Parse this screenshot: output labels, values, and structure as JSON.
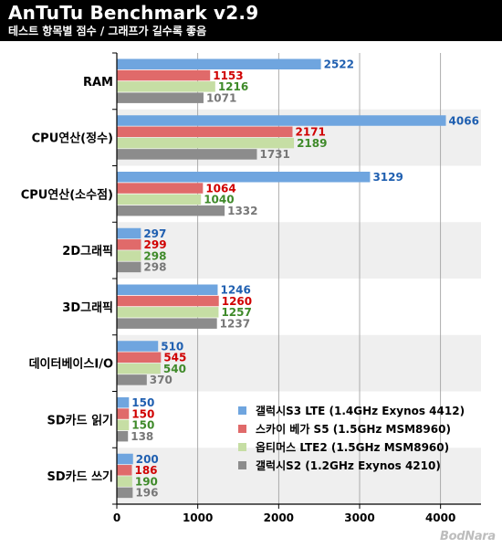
{
  "header": {
    "title": "AnTuTu Benchmark v2.9",
    "subtitle": "테스트 항목별 점수 / 그래프가 길수록 좋음"
  },
  "watermark": "BodNara",
  "colors": {
    "background": "#ffffff",
    "stripe": "#efefef",
    "header": "#000000"
  },
  "chart_data": {
    "type": "bar",
    "orientation": "horizontal",
    "categories": [
      "RAM",
      "CPU연산(정수)",
      "CPU연산(소수점)",
      "2D그래픽",
      "3D그래픽",
      "데이터베이스I/O",
      "SD카드 읽기",
      "SD카드 쓰기"
    ],
    "series": [
      {
        "name": "갤럭시S3 LTE (1.4GHz Exynos 4412)",
        "color": "#6fa5df",
        "label_color": "#1f5fb0",
        "values": [
          2522,
          4066,
          3129,
          297,
          1246,
          510,
          150,
          200
        ]
      },
      {
        "name": "스카이 베가 S5 (1.5GHz MSM8960)",
        "color": "#e06a6a",
        "label_color": "#d00000",
        "values": [
          1153,
          2171,
          1064,
          299,
          1260,
          545,
          150,
          186
        ]
      },
      {
        "name": "옵티머스 LTE2 (1.5GHz MSM8960)",
        "color": "#c6dea4",
        "label_color": "#3f8a2a",
        "values": [
          1216,
          2189,
          1040,
          298,
          1257,
          540,
          150,
          190
        ]
      },
      {
        "name": "갤럭시S2 (1.2GHz Exynos 4210)",
        "color": "#8c8c8c",
        "label_color": "#777777",
        "values": [
          1071,
          1731,
          1332,
          298,
          1237,
          370,
          138,
          196
        ]
      }
    ],
    "xlim": [
      0,
      4500
    ],
    "xticks": [
      0,
      1000,
      2000,
      3000,
      4000
    ],
    "legend_position": "bottom-right",
    "grid": "vertical"
  }
}
